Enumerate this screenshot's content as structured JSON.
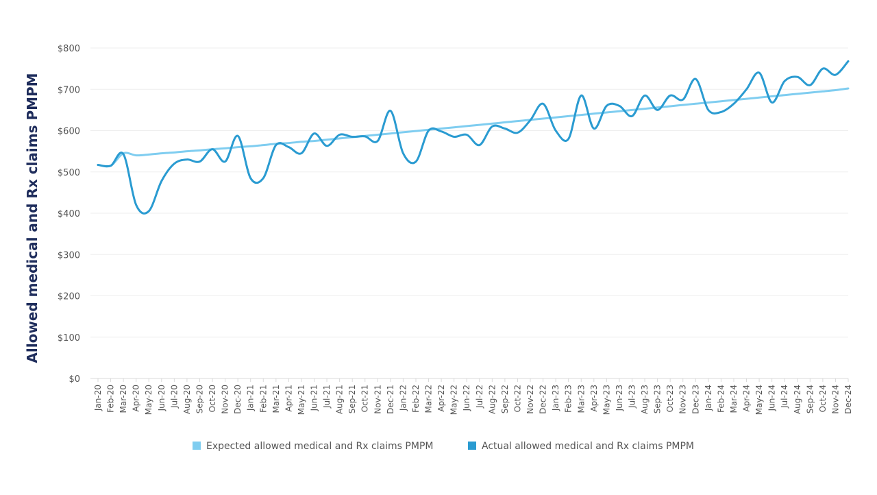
{
  "chart_data": {
    "type": "line",
    "title": "",
    "xlabel": "",
    "ylabel": "Allowed medical and Rx claims PMPM",
    "ylim": [
      0,
      800
    ],
    "yticks": [
      "$0",
      "$100",
      "$200",
      "$300",
      "$400",
      "$500",
      "$600",
      "$700",
      "$800"
    ],
    "grid": true,
    "legend_position": "bottom",
    "categories": [
      "Jan-20",
      "Feb-20",
      "Mar-20",
      "Apr-20",
      "May-20",
      "Jun-20",
      "Jul-20",
      "Aug-20",
      "Sep-20",
      "Oct-20",
      "Nov-20",
      "Dec-20",
      "Jan-21",
      "Feb-21",
      "Mar-21",
      "Apr-21",
      "May-21",
      "Jun-21",
      "Jul-21",
      "Aug-21",
      "Sep-21",
      "Oct-21",
      "Nov-21",
      "Dec-21",
      "Jan-22",
      "Feb-22",
      "Mar-22",
      "Apr-22",
      "May-22",
      "Jun-22",
      "Jul-22",
      "Aug-22",
      "Sep-22",
      "Oct-22",
      "Nov-22",
      "Dec-22",
      "Jan-23",
      "Feb-23",
      "Mar-23",
      "Apr-23",
      "May-23",
      "Jun-23",
      "Jul-23",
      "Aug-23",
      "Sep-23",
      "Oct-23",
      "Nov-23",
      "Dec-23",
      "Jan-24",
      "Feb-24",
      "Mar-24",
      "Apr-24",
      "May-24",
      "Jun-24",
      "Jul-24",
      "Aug-24",
      "Sep-24",
      "Oct-24",
      "Nov-24",
      "Dec-24"
    ],
    "series": [
      {
        "name": "Expected allowed medical and Rx claims PMPM",
        "color": "#7fcdf0",
        "values": [
          517,
          515,
          545,
          540,
          542,
          545,
          547,
          550,
          552,
          555,
          557,
          560,
          562,
          565,
          568,
          570,
          573,
          575,
          578,
          581,
          584,
          587,
          590,
          593,
          596,
          599,
          602,
          605,
          608,
          611,
          614,
          617,
          620,
          623,
          626,
          629,
          632,
          635,
          638,
          641,
          644,
          647,
          650,
          653,
          656,
          659,
          662,
          665,
          668,
          671,
          674,
          677,
          680,
          683,
          686,
          689,
          692,
          695,
          698,
          702
        ]
      },
      {
        "name": "Actual allowed medical and Rx claims PMPM",
        "color": "#2a9bd1",
        "values": [
          517,
          515,
          543,
          420,
          405,
          478,
          520,
          530,
          525,
          555,
          525,
          587,
          485,
          485,
          565,
          560,
          545,
          593,
          563,
          590,
          585,
          586,
          575,
          648,
          545,
          525,
          600,
          598,
          585,
          590,
          565,
          610,
          605,
          595,
          625,
          665,
          600,
          580,
          685,
          605,
          660,
          660,
          635,
          685,
          650,
          685,
          675,
          725,
          650,
          645,
          665,
          700,
          740,
          668,
          720,
          730,
          710,
          750,
          735,
          768
        ]
      }
    ]
  }
}
